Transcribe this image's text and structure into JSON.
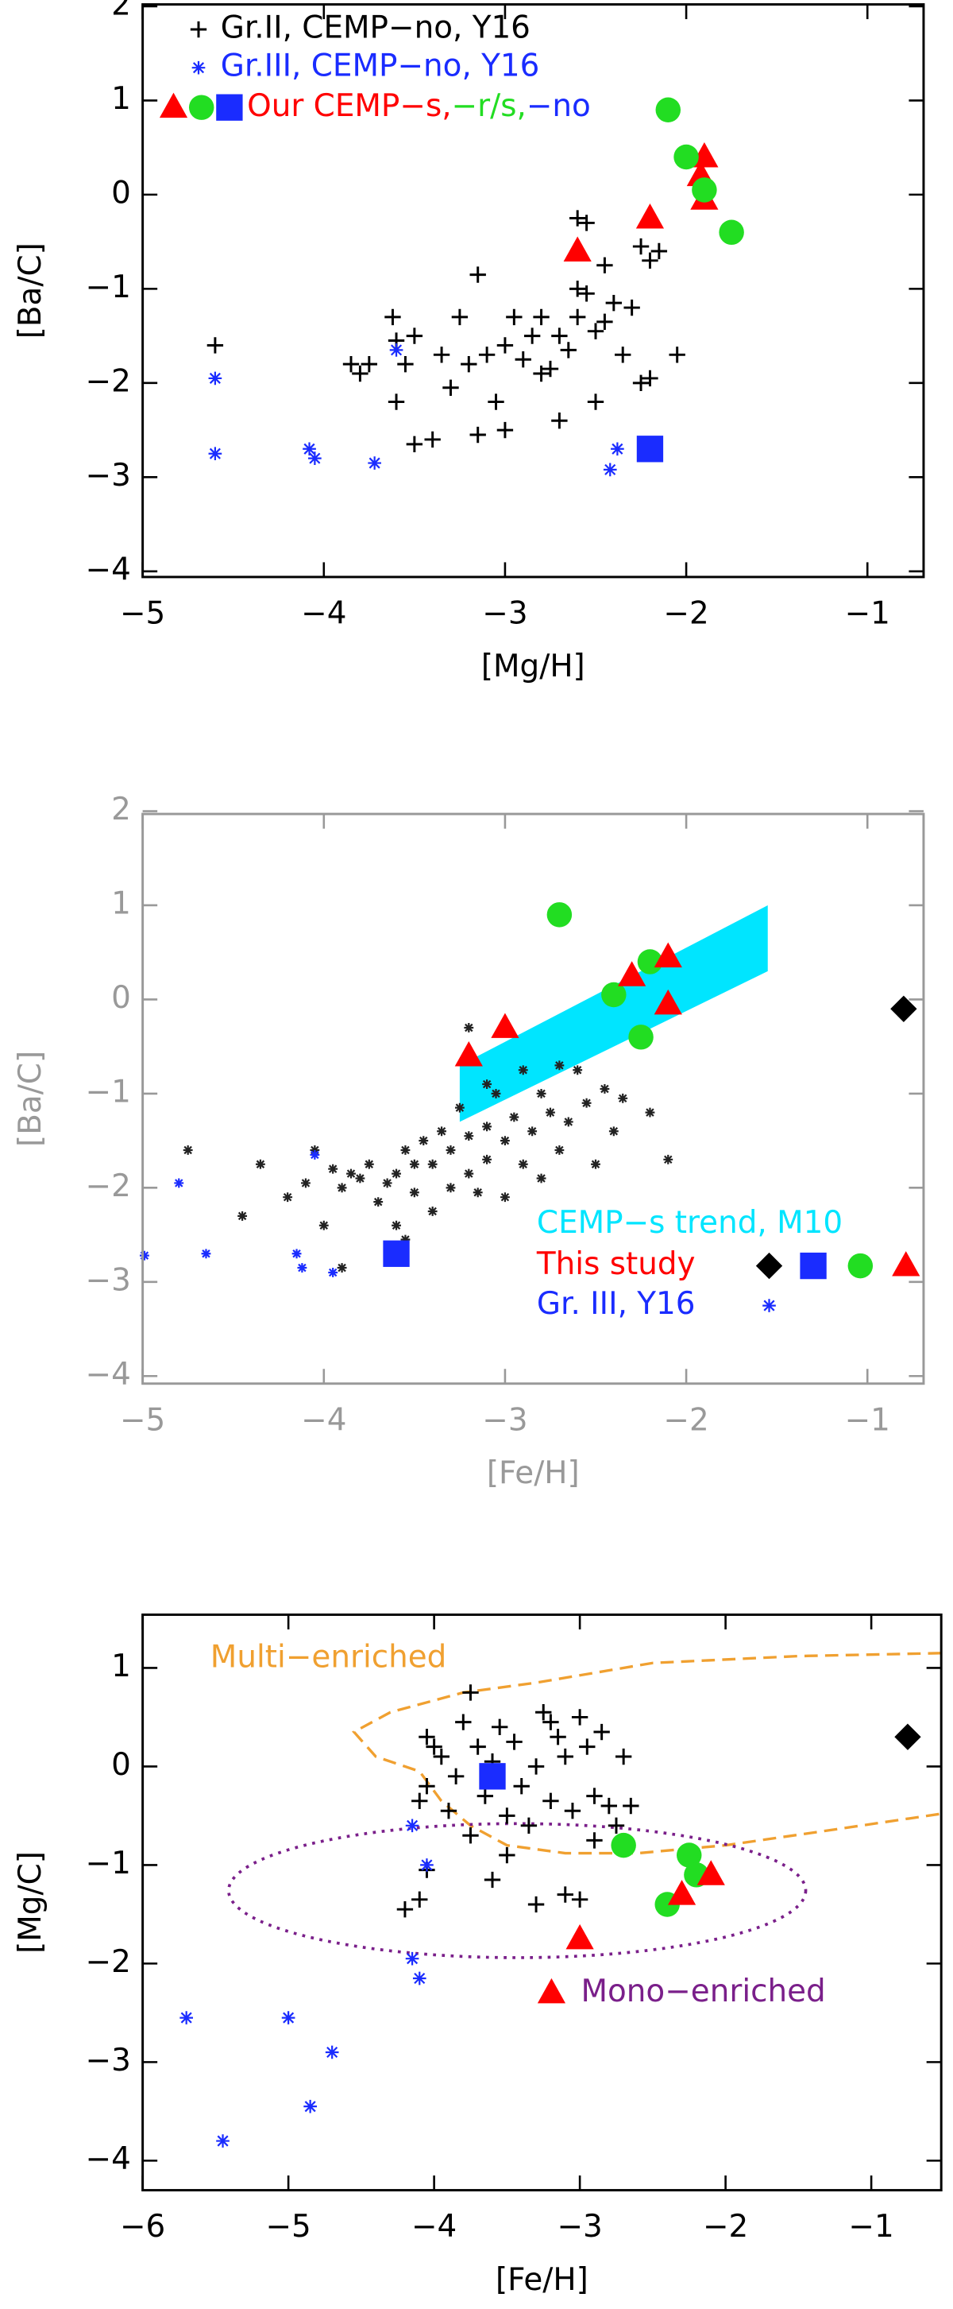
{
  "chart_data": [
    {
      "type": "scatter",
      "xlabel": "[Mg/H]",
      "ylabel": "[Ba/C]",
      "axis_color": "#000000",
      "xlim": [
        -5,
        -0.69
      ],
      "ylim": [
        -4.06,
        2.02
      ],
      "xticks": [
        {
          "value": -5,
          "label": "−5"
        },
        {
          "value": -4,
          "label": "−4"
        },
        {
          "value": -3,
          "label": "−3"
        },
        {
          "value": -2,
          "label": "−2"
        },
        {
          "value": -1,
          "label": "−1"
        }
      ],
      "yticks": [
        2,
        1,
        0,
        {
          "value": -1,
          "label": "−1"
        },
        {
          "value": -2,
          "label": "−2"
        },
        {
          "value": -3,
          "label": "−3"
        },
        {
          "value": -4,
          "label": "−4"
        }
      ],
      "series": [
        {
          "name": "Gr.II, CEMP−no, Y16",
          "color": "#000000",
          "marker": "plus",
          "x": [
            -4.6,
            -3.85,
            -3.8,
            -3.75,
            -3.62,
            -3.6,
            -3.55,
            -3.6,
            -3.5,
            -3.5,
            -3.35,
            -3.3,
            -3.25,
            -3.2,
            -3.15,
            -3.15,
            -3.1,
            -3.05,
            -3.0,
            -3.0,
            -2.95,
            -2.9,
            -2.85,
            -2.8,
            -2.8,
            -2.75,
            -2.7,
            -2.7,
            -2.65,
            -2.6,
            -2.6,
            -2.55,
            -2.5,
            -2.5,
            -2.45,
            -2.45,
            -2.4,
            -2.35,
            -2.3,
            -2.25,
            -2.25,
            -2.2,
            -2.15,
            -2.6,
            -2.55,
            -2.05,
            -2.2,
            -3.4
          ],
          "values": [
            -1.6,
            -1.8,
            -1.9,
            -1.8,
            -1.3,
            -1.55,
            -1.8,
            -2.2,
            -1.5,
            -2.65,
            -1.7,
            -2.05,
            -1.3,
            -1.8,
            -0.85,
            -2.55,
            -1.7,
            -2.2,
            -2.5,
            -1.6,
            -1.3,
            -1.75,
            -1.5,
            -1.9,
            -1.3,
            -1.85,
            -2.4,
            -1.5,
            -1.65,
            -1.0,
            -1.3,
            -1.05,
            -2.2,
            -1.45,
            -0.75,
            -1.35,
            -1.15,
            -1.7,
            -1.2,
            -2.0,
            -0.55,
            -0.7,
            -0.6,
            -0.25,
            -0.3,
            -1.7,
            -1.95,
            -2.6
          ]
        },
        {
          "name": "Gr.III, CEMP−no, Y16",
          "color": "#1a2cff",
          "marker": "asterisk",
          "x": [
            -4.6,
            -4.6,
            -4.08,
            -4.05,
            -3.72,
            -3.6,
            -2.38,
            -2.42
          ],
          "values": [
            -1.95,
            -2.75,
            -2.7,
            -2.8,
            -2.85,
            -1.65,
            -2.7,
            -2.92
          ]
        },
        {
          "name": "Our CEMP−s,",
          "color": "#ff0000",
          "marker": "triangle",
          "x": [
            -2.6,
            -2.2,
            -1.9,
            -1.92,
            -1.9
          ],
          "values": [
            -0.6,
            -0.25,
            0.4,
            0.2,
            -0.05
          ]
        },
        {
          "name": "−r/s,",
          "color": "#22dd22",
          "marker": "circle",
          "x": [
            -2.0,
            -1.9,
            -1.75,
            -2.1
          ],
          "values": [
            0.4,
            0.05,
            -0.4,
            0.9
          ]
        },
        {
          "name": "−no",
          "color": "#1a2cff",
          "marker": "square",
          "x": [
            -2.2
          ],
          "values": [
            -2.7
          ]
        }
      ]
    },
    {
      "type": "scatter",
      "xlabel": "[Fe/H]",
      "ylabel": "[Ba/C]",
      "axis_color": "#999999",
      "xlim": [
        -5,
        -0.69
      ],
      "ylim": [
        -4.08,
        1.97
      ],
      "xticks": [
        {
          "value": -5,
          "label": "−5"
        },
        {
          "value": -4,
          "label": "−4"
        },
        {
          "value": -3,
          "label": "−3"
        },
        {
          "value": -2,
          "label": "−2"
        },
        {
          "value": -1,
          "label": "−1"
        }
      ],
      "yticks": [
        2,
        1,
        0,
        {
          "value": -1,
          "label": "−1"
        },
        {
          "value": -2,
          "label": "−2"
        },
        {
          "value": -3,
          "label": "−3"
        },
        {
          "value": -4,
          "label": "−4"
        }
      ],
      "band": {
        "name": "CEMP−s trend, M10",
        "color": "#00e5ff",
        "x": [
          -3.25,
          -1.55
        ],
        "lower": [
          -1.3,
          0.3
        ],
        "upper": [
          -0.7,
          1.0
        ]
      },
      "group_label": "This study",
      "series": [
        {
          "color": "#222222",
          "marker": "asterisk-small",
          "x": [
            -4.75,
            -4.35,
            -4.45,
            -4.2,
            -4.1,
            -4.05,
            -4.0,
            -3.95,
            -3.9,
            -3.85,
            -3.8,
            -3.75,
            -3.7,
            -3.65,
            -3.6,
            -3.6,
            -3.55,
            -3.5,
            -3.5,
            -3.45,
            -3.4,
            -3.4,
            -3.35,
            -3.3,
            -3.3,
            -3.25,
            -3.2,
            -3.2,
            -3.15,
            -3.1,
            -3.1,
            -3.05,
            -3.0,
            -3.0,
            -2.95,
            -2.9,
            -2.9,
            -2.85,
            -2.8,
            -2.8,
            -2.75,
            -2.7,
            -2.7,
            -2.65,
            -2.6,
            -2.55,
            -2.5,
            -2.45,
            -2.4,
            -2.35,
            -2.2,
            -2.1,
            -3.9,
            -3.55,
            -3.2,
            -3.1
          ],
          "values": [
            -1.6,
            -1.75,
            -2.3,
            -2.1,
            -1.95,
            -1.6,
            -2.4,
            -1.8,
            -2.0,
            -1.85,
            -1.9,
            -1.75,
            -2.15,
            -1.95,
            -1.85,
            -2.4,
            -1.6,
            -1.75,
            -2.05,
            -1.5,
            -2.25,
            -1.75,
            -1.4,
            -2.0,
            -1.6,
            -1.15,
            -1.85,
            -1.45,
            -2.05,
            -1.35,
            -1.7,
            -1.0,
            -1.5,
            -2.1,
            -1.25,
            -1.75,
            -0.75,
            -1.4,
            -1.0,
            -1.9,
            -1.2,
            -0.7,
            -1.6,
            -1.3,
            -0.75,
            -1.1,
            -1.75,
            -0.95,
            -1.4,
            -1.05,
            -1.2,
            -1.7,
            -2.85,
            -2.55,
            -0.3,
            -0.9
          ]
        },
        {
          "name": "Gr. III, Y16",
          "color": "#1a2cff",
          "marker": "asterisk-small",
          "x": [
            -4.8,
            -4.65,
            -4.15,
            -4.12,
            -3.95,
            -4.05,
            -4.99
          ],
          "values": [
            -1.95,
            -2.7,
            -2.7,
            -2.85,
            -2.9,
            -1.65,
            -2.72
          ]
        },
        {
          "color": "#000000",
          "marker": "diamond",
          "x": [
            -0.8
          ],
          "values": [
            -0.1
          ]
        },
        {
          "color": "#1a2cff",
          "marker": "square",
          "x": [
            -3.6
          ],
          "values": [
            -2.7
          ]
        },
        {
          "color": "#22dd22",
          "marker": "circle",
          "x": [
            -2.7,
            -2.2,
            -2.4,
            -2.25
          ],
          "values": [
            0.9,
            0.4,
            0.05,
            -0.4
          ]
        },
        {
          "color": "#ff0000",
          "marker": "triangle",
          "x": [
            -3.2,
            -3.0,
            -2.3,
            -2.1,
            -2.1
          ],
          "values": [
            -0.6,
            -0.3,
            0.25,
            0.45,
            -0.05
          ]
        }
      ]
    },
    {
      "type": "scatter",
      "xlabel": "[Fe/H]",
      "ylabel": "[Mg/C]",
      "axis_color": "#000000",
      "xlim": [
        -6,
        -0.52
      ],
      "ylim": [
        -4.3,
        1.54
      ],
      "xticks": [
        {
          "value": -6,
          "label": "−6"
        },
        {
          "value": -5,
          "label": "−5"
        },
        {
          "value": -4,
          "label": "−4"
        },
        {
          "value": -3,
          "label": "−3"
        },
        {
          "value": -2,
          "label": "−2"
        },
        {
          "value": -1,
          "label": "−1"
        }
      ],
      "yticks": [
        1,
        0,
        {
          "value": -1,
          "label": "−1"
        },
        {
          "value": -2,
          "label": "−2"
        },
        {
          "value": -3,
          "label": "−3"
        },
        {
          "value": -4,
          "label": "−4"
        }
      ],
      "annotations": [
        {
          "text": "Multi−enriched",
          "color": "#f0a030"
        },
        {
          "text": "Mono−enriched",
          "color": "#7a1f8a"
        }
      ],
      "curves": [
        {
          "color": "#f0a030",
          "style": "dashed",
          "x": [
            -0.52,
            -1.5,
            -2.5,
            -3.3,
            -3.8,
            -4.3,
            -4.55,
            -4.4,
            -4.1,
            -3.95,
            -3.75,
            -3.5,
            -3.1,
            -2.6,
            -2.0,
            -1.3,
            -0.52
          ],
          "y": [
            1.15,
            1.12,
            1.05,
            0.85,
            0.75,
            0.55,
            0.35,
            0.1,
            -0.05,
            -0.35,
            -0.6,
            -0.8,
            -0.88,
            -0.88,
            -0.8,
            -0.65,
            -0.48
          ]
        }
      ],
      "ellipse": {
        "color": "#7a1f8a",
        "style": "dotted",
        "center": [
          -3.43,
          -1.26
        ],
        "radii": [
          1.98,
          0.68
        ]
      },
      "series": [
        {
          "color": "#000000",
          "marker": "plus",
          "x": [
            -4.2,
            -4.1,
            -4.05,
            -4.1,
            -4.05,
            -4.0,
            -4.05,
            -3.95,
            -3.9,
            -3.85,
            -3.8,
            -3.75,
            -3.75,
            -3.7,
            -3.65,
            -3.6,
            -3.55,
            -3.5,
            -3.5,
            -3.45,
            -3.4,
            -3.35,
            -3.3,
            -3.25,
            -3.2,
            -3.2,
            -3.15,
            -3.1,
            -3.05,
            -3.0,
            -3.0,
            -2.95,
            -2.9,
            -2.85,
            -2.8,
            -2.75,
            -2.7,
            -3.1,
            -3.3,
            -3.6,
            -2.65,
            -2.9
          ],
          "values": [
            -1.45,
            -1.35,
            -1.05,
            -0.35,
            -0.2,
            0.2,
            0.3,
            0.1,
            -0.45,
            -0.1,
            0.45,
            0.75,
            -0.7,
            0.2,
            -0.3,
            0.05,
            0.4,
            -0.5,
            -0.9,
            0.25,
            -0.2,
            -0.6,
            0.0,
            0.55,
            0.45,
            -0.35,
            0.3,
            0.1,
            -0.45,
            0.5,
            -1.35,
            0.2,
            -0.3,
            0.35,
            -0.4,
            -0.6,
            0.1,
            -1.3,
            -1.4,
            -1.15,
            -0.4,
            -0.75
          ]
        },
        {
          "color": "#1a2cff",
          "marker": "asterisk",
          "x": [
            -5.7,
            -5.45,
            -5.0,
            -4.85,
            -4.7,
            -4.15,
            -4.05,
            -4.15,
            -4.1
          ],
          "values": [
            -2.55,
            -3.8,
            -2.55,
            -3.45,
            -2.9,
            -0.6,
            -1.0,
            -1.95,
            -2.15
          ]
        },
        {
          "color": "#1a2cff",
          "marker": "square",
          "x": [
            -3.6
          ],
          "values": [
            -0.1
          ]
        },
        {
          "color": "#000000",
          "marker": "diamond",
          "x": [
            -0.75
          ],
          "values": [
            0.3
          ]
        },
        {
          "color": "#22dd22",
          "marker": "circle",
          "x": [
            -2.7,
            -2.25,
            -2.2,
            -2.4
          ],
          "values": [
            -0.8,
            -0.9,
            -1.1,
            -1.4
          ]
        },
        {
          "color": "#ff0000",
          "marker": "triangle",
          "x": [
            -2.3,
            -2.1,
            -3.0
          ],
          "values": [
            -1.3,
            -1.1,
            -1.75
          ]
        }
      ]
    }
  ]
}
